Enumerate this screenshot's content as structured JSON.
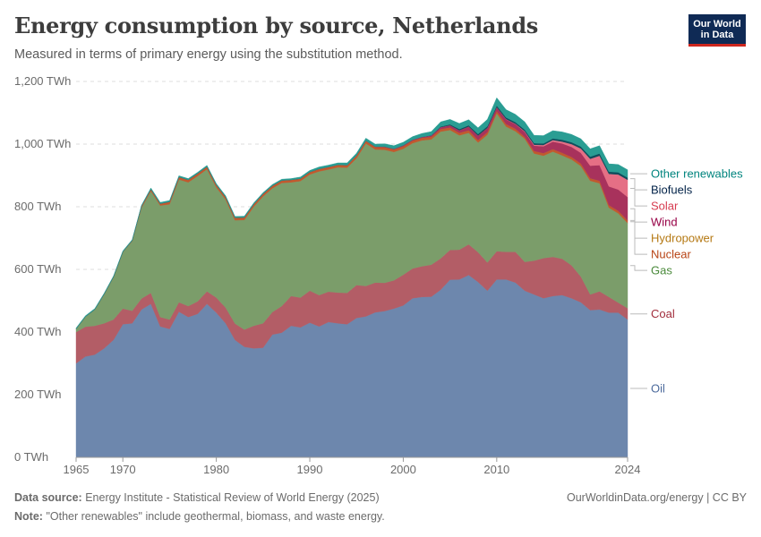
{
  "header": {
    "title": "Energy consumption by source, Netherlands",
    "subtitle": "Measured in terms of primary energy using the substitution method.",
    "logo_line1": "Our World",
    "logo_line2": "in Data"
  },
  "footer": {
    "source_label": "Data source:",
    "source_text": "Energy Institute - Statistical Review of World Energy (2025)",
    "note_label": "Note:",
    "note_text": "\"Other renewables\" include geothermal, biomass, and waste energy.",
    "credit": "OurWorldinData.org/energy | CC BY"
  },
  "chart_data": {
    "type": "area",
    "stacked": true,
    "title": "Energy consumption by source, Netherlands",
    "subtitle": "Measured in terms of primary energy using the substitution method.",
    "unit": "TWh",
    "ylim": [
      0,
      1200
    ],
    "yticks": [
      0,
      200,
      400,
      600,
      800,
      1000,
      1200
    ],
    "ytick_labels": [
      "0 TWh",
      "200 TWh",
      "400 TWh",
      "600 TWh",
      "800 TWh",
      "1,000 TWh",
      "1,200 TWh"
    ],
    "xlim": [
      1965,
      2024
    ],
    "xticks": [
      1965,
      1970,
      1980,
      1990,
      2000,
      2010,
      2024
    ],
    "x": [
      1965,
      1966,
      1967,
      1968,
      1969,
      1970,
      1971,
      1972,
      1973,
      1974,
      1975,
      1976,
      1977,
      1978,
      1979,
      1980,
      1981,
      1982,
      1983,
      1984,
      1985,
      1986,
      1987,
      1988,
      1989,
      1990,
      1991,
      1992,
      1993,
      1994,
      1995,
      1996,
      1997,
      1998,
      1999,
      2000,
      2001,
      2002,
      2003,
      2004,
      2005,
      2006,
      2007,
      2008,
      2009,
      2010,
      2011,
      2012,
      2013,
      2014,
      2015,
      2016,
      2017,
      2018,
      2019,
      2020,
      2021,
      2022,
      2023,
      2024
    ],
    "series": [
      {
        "name": "Oil",
        "color": "#6d87ad",
        "label_color": "#4c6a9c",
        "values": [
          300,
          322,
          328,
          348,
          375,
          425,
          428,
          472,
          490,
          418,
          410,
          465,
          448,
          458,
          490,
          462,
          428,
          375,
          353,
          348,
          350,
          392,
          398,
          420,
          415,
          430,
          418,
          432,
          428,
          425,
          445,
          450,
          463,
          467,
          475,
          485,
          508,
          512,
          513,
          535,
          567,
          568,
          582,
          560,
          532,
          568,
          568,
          558,
          532,
          520,
          508,
          515,
          518,
          508,
          495,
          470,
          472,
          462,
          462,
          440
        ]
      },
      {
        "name": "Coal",
        "color": "#b35d66",
        "label_color": "#a22d3c",
        "values": [
          100,
          95,
          92,
          80,
          65,
          50,
          40,
          35,
          35,
          30,
          30,
          30,
          35,
          40,
          40,
          48,
          50,
          52,
          55,
          72,
          78,
          72,
          85,
          95,
          95,
          102,
          100,
          97,
          98,
          100,
          105,
          97,
          95,
          90,
          90,
          98,
          95,
          98,
          102,
          100,
          95,
          95,
          98,
          95,
          90,
          90,
          88,
          98,
          92,
          108,
          128,
          125,
          116,
          105,
          82,
          50,
          58,
          50,
          32,
          36
        ]
      },
      {
        "name": "Gas",
        "color": "#7b9d6a",
        "label_color": "#4a8a3b",
        "values": [
          10,
          32,
          52,
          92,
          135,
          180,
          222,
          290,
          325,
          356,
          368,
          392,
          395,
          400,
          390,
          352,
          345,
          330,
          350,
          380,
          405,
          395,
          393,
          363,
          372,
          371,
          395,
          390,
          400,
          400,
          405,
          455,
          425,
          425,
          410,
          402,
          400,
          402,
          400,
          405,
          383,
          365,
          356,
          350,
          408,
          440,
          400,
          385,
          393,
          342,
          327,
          336,
          330,
          338,
          353,
          363,
          345,
          285,
          285,
          272
        ]
      },
      {
        "name": "Nuclear",
        "color": "#c1592e",
        "label_color": "#b84315",
        "values": [
          0,
          0,
          0,
          1,
          1,
          1,
          2,
          5,
          6,
          6,
          8,
          8,
          8,
          8,
          8,
          8,
          8,
          8,
          8,
          8,
          8,
          8,
          8,
          8,
          8,
          8,
          8,
          8,
          8,
          8,
          8,
          8,
          8,
          8,
          8,
          8,
          8,
          8,
          8,
          8,
          8,
          8,
          8,
          8,
          8,
          8,
          8,
          8,
          6,
          8,
          8,
          8,
          8,
          8,
          8,
          8,
          8,
          8,
          8,
          8
        ]
      },
      {
        "name": "Hydropower",
        "color": "#b88433",
        "label_color": "#b57914",
        "values": [
          0,
          0,
          0,
          0,
          0,
          0,
          0,
          0,
          0,
          0,
          0,
          0,
          0,
          0,
          0,
          0,
          0,
          0,
          0,
          0,
          0,
          0,
          0,
          0,
          0,
          0,
          0,
          0,
          0,
          0,
          0,
          0,
          0,
          0,
          0,
          0,
          0,
          0,
          0,
          0,
          0,
          0,
          0,
          0,
          0,
          0,
          0,
          0,
          0,
          0,
          0,
          0,
          0,
          0,
          0,
          0,
          0,
          0,
          0,
          0
        ]
      },
      {
        "name": "Wind",
        "color": "#a8325c",
        "label_color": "#970046",
        "values": [
          0,
          0,
          0,
          0,
          0,
          0,
          0,
          0,
          0,
          0,
          0,
          0,
          0,
          0,
          0,
          0,
          0,
          0,
          0,
          0,
          0,
          0,
          0,
          0,
          0,
          0,
          0,
          0,
          0,
          0,
          1,
          1,
          1,
          2,
          2,
          3,
          3,
          3,
          4,
          6,
          7,
          8,
          12,
          14,
          14,
          12,
          15,
          15,
          16,
          17,
          22,
          24,
          30,
          32,
          34,
          40,
          50,
          60,
          68,
          75
        ]
      },
      {
        "name": "Solar",
        "color": "#e56f85",
        "label_color": "#d73c50",
        "values": [
          0,
          0,
          0,
          0,
          0,
          0,
          0,
          0,
          0,
          0,
          0,
          0,
          0,
          0,
          0,
          0,
          0,
          0,
          0,
          0,
          0,
          0,
          0,
          0,
          0,
          0,
          0,
          0,
          0,
          0,
          0,
          0,
          0,
          0,
          0,
          0,
          0,
          0,
          0,
          0,
          0,
          0,
          0,
          0,
          0,
          0,
          1,
          1,
          2,
          3,
          4,
          5,
          6,
          9,
          14,
          22,
          30,
          40,
          48,
          55
        ]
      },
      {
        "name": "Biofuels",
        "color": "#0f4d5c",
        "label_color": "#002147",
        "values": [
          0,
          0,
          0,
          0,
          0,
          0,
          0,
          0,
          0,
          0,
          0,
          0,
          0,
          0,
          0,
          0,
          0,
          0,
          0,
          0,
          0,
          0,
          0,
          0,
          0,
          0,
          0,
          0,
          0,
          0,
          0,
          0,
          0,
          0,
          0,
          0,
          0,
          0,
          1,
          2,
          3,
          4,
          4,
          5,
          5,
          5,
          5,
          5,
          5,
          5,
          5,
          5,
          6,
          6,
          6,
          7,
          7,
          7,
          7,
          7
        ]
      },
      {
        "name": "Other renewables",
        "color": "#2a9d93",
        "label_color": "#00847e",
        "values": [
          3,
          3,
          3,
          3,
          3,
          3,
          3,
          3,
          4,
          4,
          4,
          4,
          4,
          4,
          4,
          4,
          4,
          4,
          4,
          4,
          4,
          4,
          4,
          4,
          5,
          5,
          6,
          6,
          6,
          7,
          7,
          8,
          8,
          9,
          10,
          10,
          10,
          11,
          12,
          15,
          16,
          18,
          18,
          20,
          22,
          25,
          25,
          25,
          25,
          25,
          25,
          25,
          25,
          25,
          25,
          25,
          25,
          25,
          25,
          25
        ]
      }
    ]
  }
}
